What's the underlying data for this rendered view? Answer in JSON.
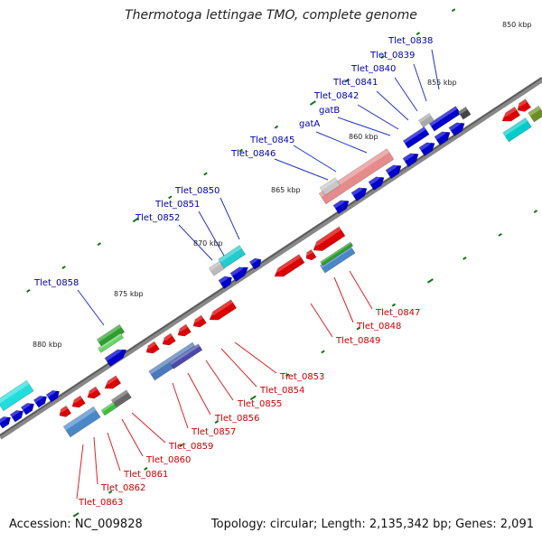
{
  "title": "Thermotoga lettingae TMO, complete genome",
  "footer": {
    "accession": "Accession: NC_009828",
    "topology": "Topology: circular; Length: 2,135,342 bp; Genes: 2,091"
  },
  "scale_marks": [
    "850 kbp",
    "855 kbp",
    "860 kbp",
    "865 kbp",
    "870 kbp",
    "875 kbp",
    "880 kbp"
  ],
  "top_labels": [
    "Tlet_0838",
    "Tlet_0839",
    "Tlet_0840",
    "Tlet_0841",
    "Tlet_0842",
    "gatB",
    "gatA",
    "Tlet_0845",
    "Tlet_0846",
    "Tlet_0850",
    "Tlet_0851",
    "Tlet_0852",
    "Tlet_0858"
  ],
  "bottom_labels": [
    "Tlet_0847",
    "Tlet_0848",
    "Tlet_0849",
    "Tlet_0853",
    "Tlet_0854",
    "Tlet_0855",
    "Tlet_0856",
    "Tlet_0857",
    "Tlet_0859",
    "Tlet_0860",
    "Tlet_0861",
    "Tlet_0862",
    "Tlet_0863"
  ],
  "colors": {
    "forward_gene": "#0000cc",
    "reverse_gene": "#dd0000",
    "label_top": "#0000aa",
    "label_bottom": "#cc0000",
    "backbone": "#777777",
    "tick": "#117711"
  }
}
